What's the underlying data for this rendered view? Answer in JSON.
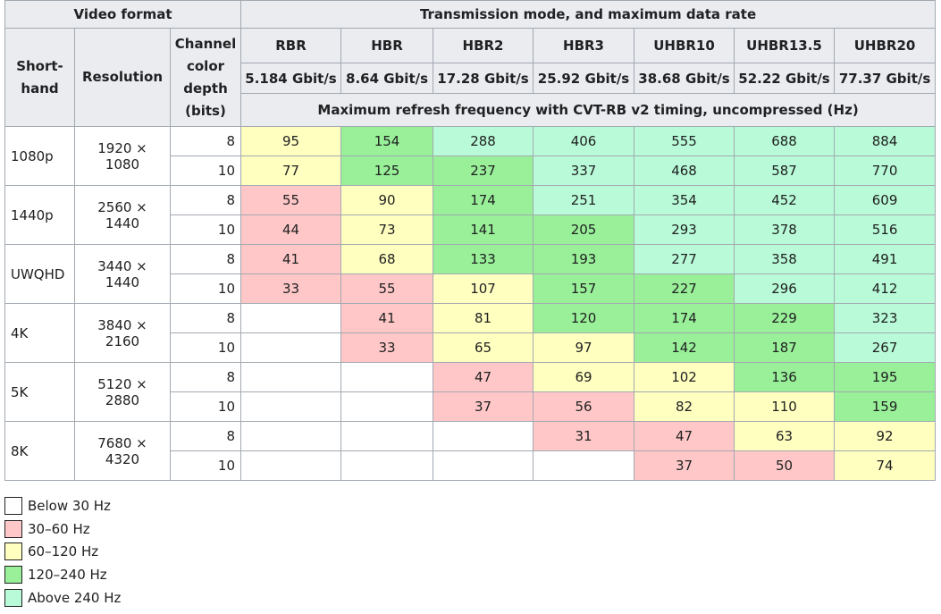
{
  "table": {
    "group_headers": [
      "Video format",
      "Transmission mode, and maximum data rate"
    ],
    "format_headers": [
      "Short-hand",
      "Resolution",
      "Channel color depth (bits)"
    ],
    "modes": [
      "RBR",
      "HBR",
      "HBR2",
      "HBR3",
      "UHBR10",
      "UHBR13.5",
      "UHBR20"
    ],
    "rates": [
      "5.184 Gbit/s",
      "8.64 Gbit/s",
      "17.28 Gbit/s",
      "25.92 Gbit/s",
      "38.68 Gbit/s",
      "52.22 Gbit/s",
      "77.37 Gbit/s"
    ],
    "caption": "Maximum refresh frequency with CVT-RB v2 timing, uncompressed (Hz)",
    "formats": [
      {
        "shorthand": "1080p",
        "resolution": "1920 × 1080",
        "rows": [
          {
            "depth": 8,
            "values": [
              95,
              154,
              288,
              406,
              555,
              688,
              884
            ],
            "colors": [
              "#ffffc0",
              "#99f099",
              "#b9fbd8",
              "#b9fbd8",
              "#b9fbd8",
              "#b9fbd8",
              "#b9fbd8"
            ]
          },
          {
            "depth": 10,
            "values": [
              77,
              125,
              237,
              337,
              468,
              587,
              770
            ],
            "colors": [
              "#ffffc0",
              "#99f099",
              "#99f099",
              "#b9fbd8",
              "#b9fbd8",
              "#b9fbd8",
              "#b9fbd8"
            ]
          }
        ]
      },
      {
        "shorthand": "1440p",
        "resolution": "2560 × 1440",
        "rows": [
          {
            "depth": 8,
            "values": [
              55,
              90,
              174,
              251,
              354,
              452,
              609
            ],
            "colors": [
              "#ffc7c7",
              "#ffffc0",
              "#99f099",
              "#b9fbd8",
              "#b9fbd8",
              "#b9fbd8",
              "#b9fbd8"
            ]
          },
          {
            "depth": 10,
            "values": [
              44,
              73,
              141,
              205,
              293,
              378,
              516
            ],
            "colors": [
              "#ffc7c7",
              "#ffffc0",
              "#99f099",
              "#99f099",
              "#b9fbd8",
              "#b9fbd8",
              "#b9fbd8"
            ]
          }
        ]
      },
      {
        "shorthand": "UWQHD",
        "resolution": "3440 × 1440",
        "rows": [
          {
            "depth": 8,
            "values": [
              41,
              68,
              133,
              193,
              277,
              358,
              491
            ],
            "colors": [
              "#ffc7c7",
              "#ffffc0",
              "#99f099",
              "#99f099",
              "#b9fbd8",
              "#b9fbd8",
              "#b9fbd8"
            ]
          },
          {
            "depth": 10,
            "values": [
              33,
              55,
              107,
              157,
              227,
              296,
              412
            ],
            "colors": [
              "#ffc7c7",
              "#ffc7c7",
              "#ffffc0",
              "#99f099",
              "#99f099",
              "#b9fbd8",
              "#b9fbd8"
            ]
          }
        ]
      },
      {
        "shorthand": "4K",
        "resolution": "3840 × 2160",
        "rows": [
          {
            "depth": 8,
            "values": [
              null,
              41,
              81,
              120,
              174,
              229,
              323
            ],
            "colors": [
              "#ffffff",
              "#ffc7c7",
              "#ffffc0",
              "#99f099",
              "#99f099",
              "#99f099",
              "#b9fbd8"
            ]
          },
          {
            "depth": 10,
            "values": [
              null,
              33,
              65,
              97,
              142,
              187,
              267
            ],
            "colors": [
              "#ffffff",
              "#ffc7c7",
              "#ffffc0",
              "#ffffc0",
              "#99f099",
              "#99f099",
              "#b9fbd8"
            ]
          }
        ]
      },
      {
        "shorthand": "5K",
        "resolution": "5120 × 2880",
        "rows": [
          {
            "depth": 8,
            "values": [
              null,
              null,
              47,
              69,
              102,
              136,
              195
            ],
            "colors": [
              "#ffffff",
              "#ffffff",
              "#ffc7c7",
              "#ffffc0",
              "#ffffc0",
              "#99f099",
              "#99f099"
            ]
          },
          {
            "depth": 10,
            "values": [
              null,
              null,
              37,
              56,
              82,
              110,
              159
            ],
            "colors": [
              "#ffffff",
              "#ffffff",
              "#ffc7c7",
              "#ffc7c7",
              "#ffffc0",
              "#ffffc0",
              "#99f099"
            ]
          }
        ]
      },
      {
        "shorthand": "8K",
        "resolution": "7680 × 4320",
        "rows": [
          {
            "depth": 8,
            "values": [
              null,
              null,
              null,
              31,
              47,
              63,
              92
            ],
            "colors": [
              "#ffffff",
              "#ffffff",
              "#ffffff",
              "#ffc7c7",
              "#ffc7c7",
              "#ffffc0",
              "#ffffc0"
            ]
          },
          {
            "depth": 10,
            "values": [
              null,
              null,
              null,
              null,
              37,
              50,
              74
            ],
            "colors": [
              "#ffffff",
              "#ffffff",
              "#ffffff",
              "#ffffff",
              "#ffc7c7",
              "#ffc7c7",
              "#ffffc0"
            ]
          }
        ]
      }
    ]
  },
  "legend": [
    {
      "label": "Below 30 Hz",
      "color": "#ffffff"
    },
    {
      "label": "30–60 Hz",
      "color": "#ffc7c7"
    },
    {
      "label": "60–120 Hz",
      "color": "#ffffc0"
    },
    {
      "label": "120–240 Hz",
      "color": "#99f099"
    },
    {
      "label": "Above 240 Hz",
      "color": "#b9fbd8"
    }
  ]
}
